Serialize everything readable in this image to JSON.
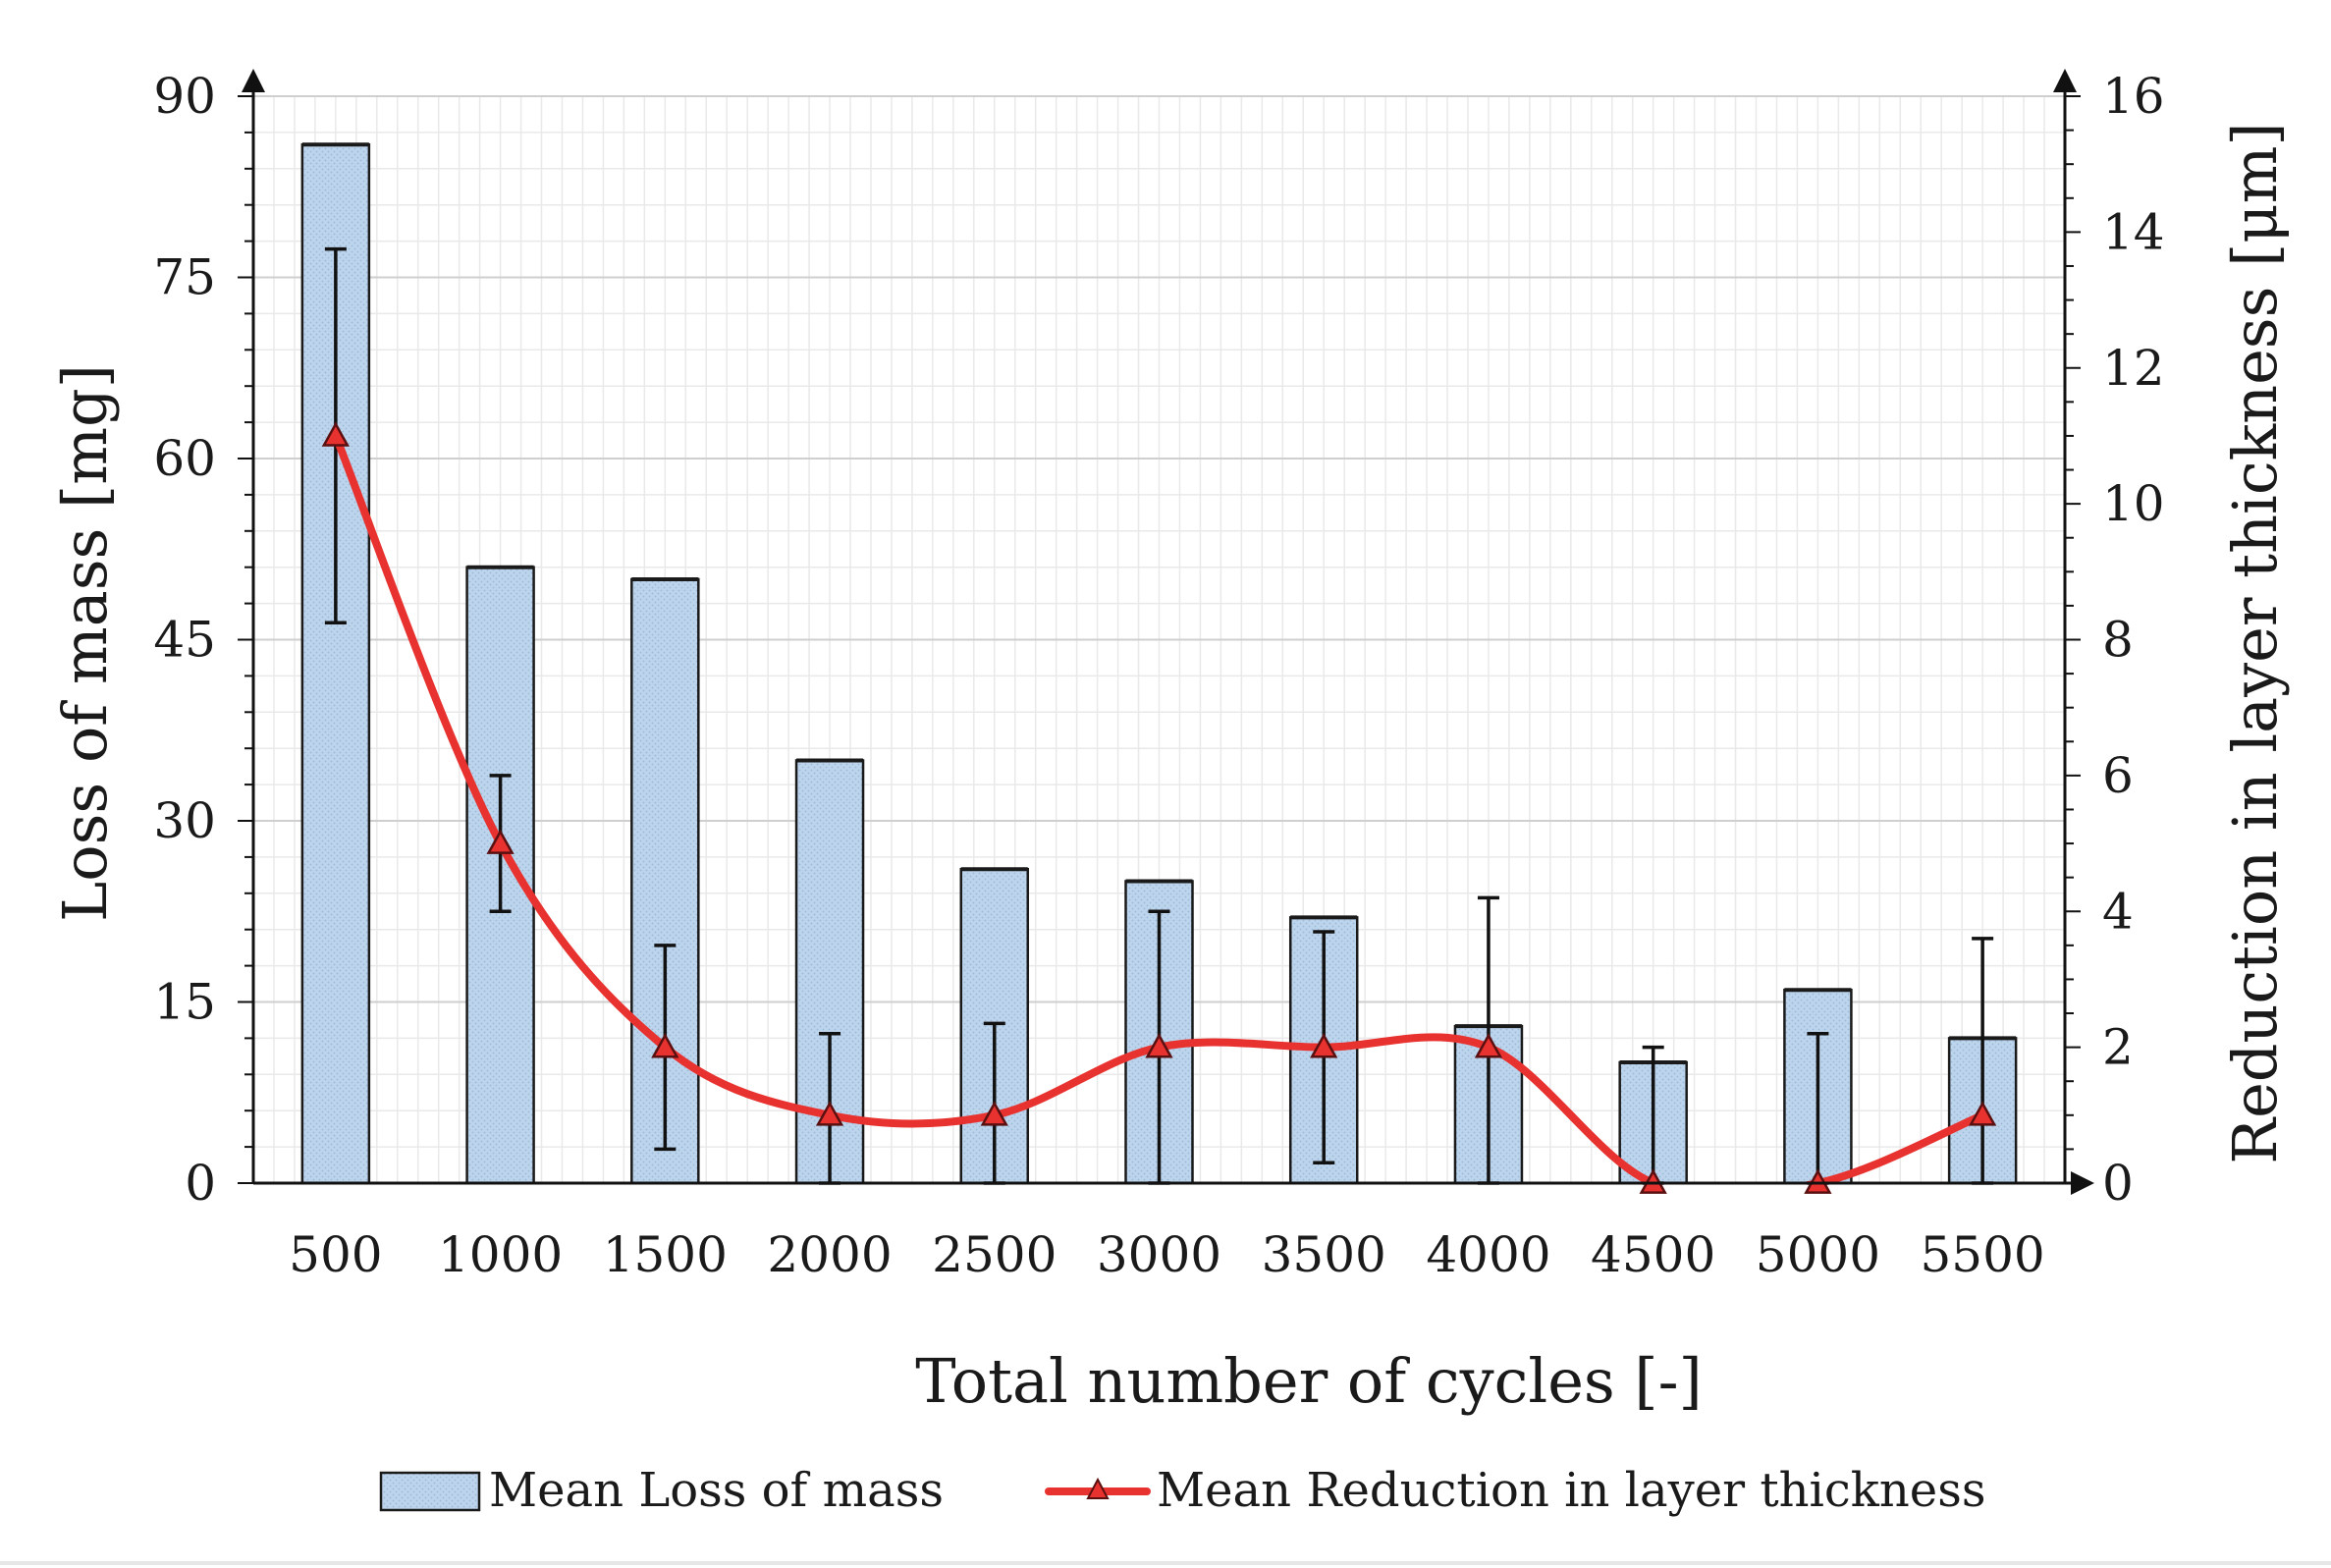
{
  "chart_data": {
    "type": "bar+line",
    "categories": [
      "500",
      "1000",
      "1500",
      "2000",
      "2500",
      "3000",
      "3500",
      "4000",
      "4500",
      "5000",
      "5500"
    ],
    "series": [
      {
        "name": "Mean Loss of mass",
        "type": "bar",
        "axis": "left",
        "values": [
          86,
          51,
          50,
          35,
          26,
          25,
          22,
          13,
          10,
          16,
          12
        ],
        "color": "#b7d0ea"
      },
      {
        "name": "Mean Reduction in layer thickness",
        "type": "line",
        "axis": "right",
        "values": [
          11,
          5,
          2,
          1,
          1,
          2,
          2,
          2,
          0,
          0,
          1
        ],
        "error_low": [
          8.25,
          4,
          0.5,
          0,
          0,
          0,
          0.3,
          0,
          0,
          0,
          0
        ],
        "error_high": [
          13.75,
          6,
          3.5,
          2.2,
          2.35,
          4,
          3.7,
          4.2,
          2,
          2.2,
          3.6
        ],
        "color": "#e8322f",
        "marker": "triangle"
      }
    ],
    "xlabel": "Total number of cycles [-]",
    "ylabel_left": "Loss of mass [mg]",
    "ylabel_right": "Reduction in layer thickness [μm]",
    "ylim_left": [
      0,
      90
    ],
    "ylim_right": [
      0,
      16
    ],
    "yticks_left": [
      "0",
      "15",
      "30",
      "45",
      "60",
      "75",
      "90"
    ],
    "yticks_right": [
      "0",
      "2",
      "4",
      "6",
      "8",
      "10",
      "12",
      "14",
      "16"
    ],
    "grid": true,
    "legend_position": "bottom"
  }
}
